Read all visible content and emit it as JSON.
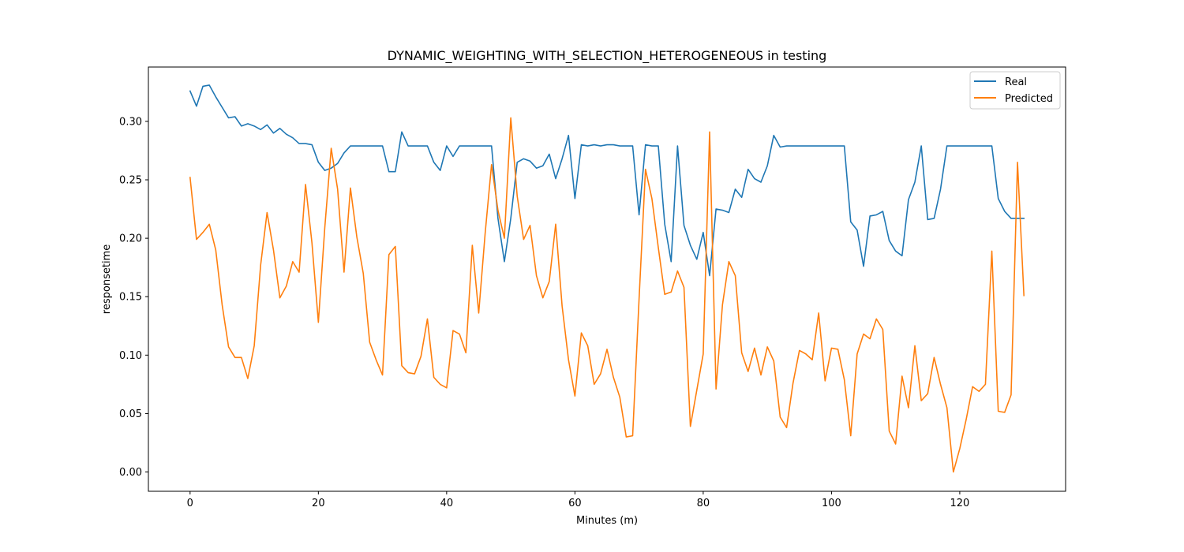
{
  "chart_data": {
    "type": "line",
    "title": "DYNAMIC_WEIGHTING_WITH_SELECTION_HETEROGENEOUS in testing",
    "xlabel": "Minutes (m)",
    "ylabel": "responsetime",
    "xlim": [
      -6.5,
      136.5
    ],
    "ylim": [
      -0.0165,
      0.3465
    ],
    "xticks": [
      0,
      20,
      40,
      60,
      80,
      100,
      120
    ],
    "yticks": [
      0.0,
      0.05,
      0.1,
      0.15,
      0.2,
      0.25,
      0.3
    ],
    "ytick_labels": [
      "0.00",
      "0.05",
      "0.10",
      "0.15",
      "0.20",
      "0.25",
      "0.30"
    ],
    "grid": false,
    "legend_position": "upper-right",
    "series": [
      {
        "name": "Real",
        "color": "#1f77b4",
        "values": [
          0.326,
          0.313,
          0.33,
          0.331,
          0.321,
          0.312,
          0.303,
          0.304,
          0.296,
          0.298,
          0.296,
          0.293,
          0.297,
          0.29,
          0.294,
          0.289,
          0.286,
          0.281,
          0.281,
          0.28,
          0.265,
          0.258,
          0.26,
          0.264,
          0.273,
          0.279,
          0.279,
          0.279,
          0.279,
          0.279,
          0.279,
          0.257,
          0.257,
          0.291,
          0.279,
          0.279,
          0.279,
          0.279,
          0.265,
          0.258,
          0.279,
          0.27,
          0.279,
          0.279,
          0.279,
          0.279,
          0.279,
          0.279,
          0.217,
          0.18,
          0.217,
          0.265,
          0.268,
          0.266,
          0.26,
          0.262,
          0.272,
          0.251,
          0.268,
          0.288,
          0.234,
          0.28,
          0.279,
          0.28,
          0.279,
          0.28,
          0.28,
          0.279,
          0.279,
          0.279,
          0.22,
          0.28,
          0.279,
          0.279,
          0.212,
          0.18,
          0.279,
          0.211,
          0.194,
          0.182,
          0.205,
          0.168,
          0.225,
          0.224,
          0.222,
          0.242,
          0.235,
          0.259,
          0.251,
          0.248,
          0.262,
          0.288,
          0.278,
          0.279,
          0.279,
          0.279,
          0.279,
          0.279,
          0.279,
          0.279,
          0.279,
          0.279,
          0.279,
          0.214,
          0.207,
          0.176,
          0.219,
          0.22,
          0.223,
          0.198,
          0.189,
          0.185,
          0.233,
          0.248,
          0.279,
          0.216,
          0.217,
          0.242,
          0.279,
          0.279,
          0.279,
          0.279,
          0.279,
          0.279,
          0.279,
          0.279,
          0.234,
          0.223,
          0.217,
          0.217,
          0.217
        ]
      },
      {
        "name": "Predicted",
        "color": "#ff7f0e",
        "values": [
          0.252,
          0.199,
          0.205,
          0.212,
          0.19,
          0.143,
          0.107,
          0.098,
          0.098,
          0.08,
          0.108,
          0.177,
          0.222,
          0.19,
          0.149,
          0.159,
          0.18,
          0.171,
          0.246,
          0.196,
          0.128,
          0.209,
          0.277,
          0.242,
          0.171,
          0.243,
          0.201,
          0.17,
          0.111,
          0.096,
          0.083,
          0.186,
          0.193,
          0.091,
          0.085,
          0.084,
          0.099,
          0.131,
          0.081,
          0.075,
          0.072,
          0.121,
          0.118,
          0.102,
          0.194,
          0.136,
          0.204,
          0.263,
          0.224,
          0.2,
          0.303,
          0.236,
          0.199,
          0.211,
          0.168,
          0.149,
          0.163,
          0.212,
          0.142,
          0.096,
          0.065,
          0.119,
          0.108,
          0.075,
          0.084,
          0.105,
          0.081,
          0.064,
          0.03,
          0.031,
          0.148,
          0.259,
          0.234,
          0.192,
          0.152,
          0.154,
          0.172,
          0.158,
          0.039,
          0.07,
          0.101,
          0.291,
          0.071,
          0.143,
          0.18,
          0.168,
          0.102,
          0.086,
          0.106,
          0.083,
          0.107,
          0.095,
          0.047,
          0.038,
          0.076,
          0.104,
          0.101,
          0.096,
          0.136,
          0.078,
          0.106,
          0.105,
          0.079,
          0.031,
          0.101,
          0.118,
          0.114,
          0.131,
          0.122,
          0.035,
          0.024,
          0.082,
          0.055,
          0.108,
          0.061,
          0.067,
          0.098,
          0.075,
          0.055,
          0.0,
          0.02,
          0.045,
          0.073,
          0.069,
          0.075,
          0.189,
          0.052,
          0.051,
          0.066,
          0.265,
          0.151
        ]
      }
    ]
  }
}
